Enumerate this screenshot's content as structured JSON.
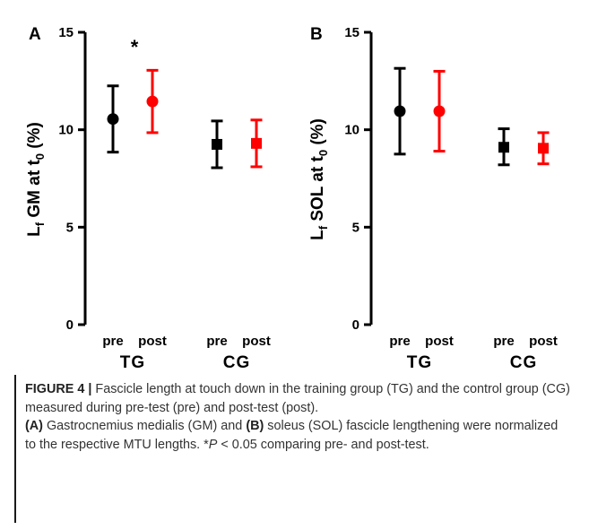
{
  "colors": {
    "pre": "#000000",
    "post": "#ff0000"
  },
  "chart_data": [
    {
      "type": "scatter",
      "panel": "A",
      "ylabel_main": "L",
      "ylabel_sub": "f",
      "ylabel_mid": " GM at t",
      "ylabel_sub2": "0",
      "ylabel_end": " (%)",
      "ylim": [
        0,
        15
      ],
      "yticks": [
        "0",
        "5",
        "10",
        "15"
      ],
      "groups": [
        "TG",
        "CG"
      ],
      "conditions": [
        "pre",
        "post",
        "pre",
        "post"
      ],
      "annotation": "*",
      "series": [
        {
          "group": "TG",
          "condition": "pre",
          "marker": "circle",
          "color": "#000000",
          "mean": 10.55,
          "low": 8.85,
          "high": 12.25
        },
        {
          "group": "TG",
          "condition": "post",
          "marker": "circle",
          "color": "#ff0000",
          "mean": 11.45,
          "low": 9.85,
          "high": 13.05
        },
        {
          "group": "CG",
          "condition": "pre",
          "marker": "square",
          "color": "#000000",
          "mean": 9.25,
          "low": 8.05,
          "high": 10.45
        },
        {
          "group": "CG",
          "condition": "post",
          "marker": "square",
          "color": "#ff0000",
          "mean": 9.3,
          "low": 8.1,
          "high": 10.5
        }
      ]
    },
    {
      "type": "scatter",
      "panel": "B",
      "ylabel_main": "L",
      "ylabel_sub": "f",
      "ylabel_mid": " SOL at t",
      "ylabel_sub2": "0",
      "ylabel_end": " (%)",
      "ylim": [
        0,
        15
      ],
      "yticks": [
        "0",
        "5",
        "10",
        "15"
      ],
      "groups": [
        "TG",
        "CG"
      ],
      "conditions": [
        "pre",
        "post",
        "pre",
        "post"
      ],
      "series": [
        {
          "group": "TG",
          "condition": "pre",
          "marker": "circle",
          "color": "#000000",
          "mean": 10.95,
          "low": 8.75,
          "high": 13.15
        },
        {
          "group": "TG",
          "condition": "post",
          "marker": "circle",
          "color": "#ff0000",
          "mean": 10.95,
          "low": 8.9,
          "high": 13.0
        },
        {
          "group": "CG",
          "condition": "pre",
          "marker": "square",
          "color": "#000000",
          "mean": 9.1,
          "low": 8.2,
          "high": 10.05
        },
        {
          "group": "CG",
          "condition": "post",
          "marker": "square",
          "color": "#ff0000",
          "mean": 9.05,
          "low": 8.25,
          "high": 9.85
        }
      ]
    }
  ],
  "caption": {
    "figure_label": "FIGURE 4 |",
    "line1": " Fascicle length at touch down in the training group (TG) and the control group (CG) measured during pre-test (pre) and post-test (post).",
    "a_label": "(A)",
    "a_text": " Gastrocnemius medialis (GM) and ",
    "b_label": "(B)",
    "b_text": " soleus (SOL) fascicle lengthening were normalized to the respective MTU lengths. *",
    "p_sym": "P",
    "p_text": " < 0.05 comparing pre- and post-test."
  }
}
